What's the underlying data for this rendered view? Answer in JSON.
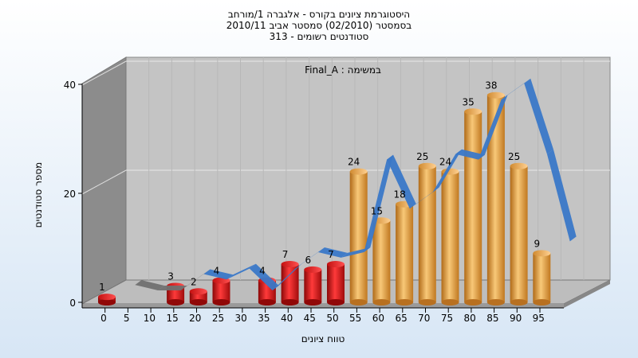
{
  "chart_data": {
    "type": "bar",
    "title_lines": [
      "היסטוגרמת ציונים בקורס - אלגברה 1/מורחב",
      "בסמסטר (02/2010) סמסטר אביב 2010/11",
      "313 - סטודנטים רשומים"
    ],
    "annotation": "Final_A : במשימה",
    "xlabel": "טווח ציונים",
    "ylabel": "מספר סטודנטים",
    "x_ticks": [
      "0",
      "5",
      "10",
      "15",
      "20",
      "25",
      "30",
      "35",
      "40",
      "45",
      "50",
      "55",
      "60",
      "65",
      "70",
      "75",
      "80",
      "85",
      "90",
      "95"
    ],
    "y_ticks": [
      "0",
      "20",
      "40"
    ],
    "ylim": [
      0,
      40
    ],
    "bins": [
      0,
      5,
      10,
      15,
      20,
      25,
      30,
      35,
      40,
      45,
      50,
      55,
      60,
      65,
      70,
      75,
      80,
      85,
      90,
      95
    ],
    "values": [
      1,
      0,
      0,
      3,
      2,
      4,
      0,
      4,
      7,
      6,
      7,
      24,
      15,
      18,
      25,
      24,
      35,
      38,
      25,
      9
    ],
    "labels": [
      "1",
      "",
      "",
      "3",
      "2",
      "4",
      "",
      "4",
      "7",
      "6",
      "7",
      "24",
      "15",
      "18",
      "25",
      "24",
      "35",
      "38",
      "25",
      "9"
    ],
    "fail_color": "#e01818",
    "pass_color": "#e8a040",
    "trend_color": "#3a78c8",
    "trend_gray": "#707070",
    "grid": true,
    "legend": "none"
  }
}
